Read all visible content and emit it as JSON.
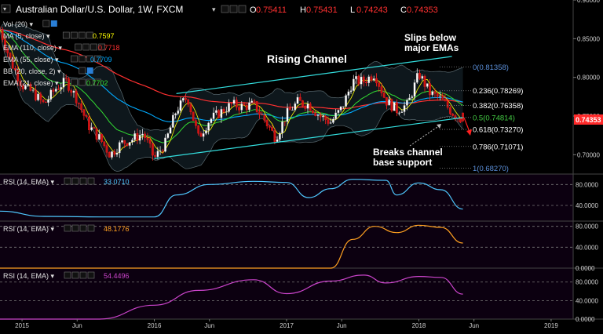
{
  "header": {
    "title": "Australian Dollar/U.S. Dollar, 1W, FXCM",
    "ohlc": [
      {
        "key": "O",
        "value": "0.75411"
      },
      {
        "key": "H",
        "value": "0.75431"
      },
      {
        "key": "L",
        "value": "0.74243"
      },
      {
        "key": "C",
        "value": "0.74353"
      }
    ]
  },
  "indicators": [
    {
      "label": "Vol (20)",
      "value": "",
      "color": "#ffffff"
    },
    {
      "label": "MA (5, close)",
      "value": "0.7597",
      "color": "#ffff00"
    },
    {
      "label": "EMA (110, close)",
      "value": "0.7718",
      "color": "#ff3030"
    },
    {
      "label": "EMA (55, close)",
      "value": "0.7709",
      "color": "#00aaff"
    },
    {
      "label": "BB (20, close, 2)",
      "value": "",
      "color": "#ffffff"
    },
    {
      "label": "EMA (21, close)",
      "value": "0.7702",
      "color": "#33dd33"
    }
  ],
  "price_tag": "0.74353",
  "annotations": {
    "channel": "Rising Channel",
    "slips_1": "Slips below",
    "slips_2": "major EMAs",
    "breaks_1": "Breaks channel",
    "breaks_2": "base support"
  },
  "fib_levels": [
    {
      "label": "0(0.81358)",
      "color": "#5b8fd9"
    },
    {
      "label": "0.236(0.78269)",
      "color": "#ffffff"
    },
    {
      "label": "0.382(0.76358)",
      "color": "#ffffff"
    },
    {
      "label": "0.5(0.74814)",
      "color": "#44cc44"
    },
    {
      "label": "0.618(0.73270)",
      "color": "#ffffff"
    },
    {
      "label": "0.786(0.71071)",
      "color": "#ffffff"
    },
    {
      "label": "1(0.68270)",
      "color": "#5b8fd9"
    }
  ],
  "price_axis": [
    "0.90000",
    "0.85000",
    "0.80000",
    "0.75000",
    "0.70000"
  ],
  "rsi_panels": [
    {
      "label": "RSI (14, EMA)",
      "value": "33.0710",
      "color": "#4fc8ff",
      "axis": [
        "80.0000",
        "40.0000"
      ]
    },
    {
      "label": "RSI (14, EMA)",
      "value": "48.1776",
      "color": "#ffa020",
      "axis": [
        "80.0000",
        "40.0000",
        "0.0000"
      ]
    },
    {
      "label": "RSI (14, EMA)",
      "value": "54.4496",
      "color": "#cc44cc",
      "axis": [
        "80.0000",
        "40.0000",
        "0.0000"
      ]
    }
  ],
  "time_axis": [
    "2015",
    "Jun",
    "2016",
    "Jun",
    "2017",
    "Jun",
    "2018",
    "Jun",
    "2019"
  ],
  "chart_data": {
    "type": "candlestick",
    "title": "Australian Dollar/U.S. Dollar, 1W, FXCM",
    "ylim": [
      0.675,
      0.9
    ],
    "price_ticks": [
      0.9,
      0.85,
      0.8,
      0.75,
      0.7
    ],
    "fib_values": [
      0.81358,
      0.78269,
      0.76358,
      0.74814,
      0.7327,
      0.71071,
      0.6827
    ],
    "last_close": 0.74353,
    "x_range": [
      "2014-11",
      "2019-02"
    ],
    "time_ticks": [
      "2015-01",
      "2015-06",
      "2016-01",
      "2016-06",
      "2017-01",
      "2017-06",
      "2018-01",
      "2018-06",
      "2019-01"
    ],
    "close_path": [
      {
        "t": "2014-11",
        "v": 0.862
      },
      {
        "t": "2014-12",
        "v": 0.82
      },
      {
        "t": "2015-01",
        "v": 0.79
      },
      {
        "t": "2015-02",
        "v": 0.78
      },
      {
        "t": "2015-03",
        "v": 0.765
      },
      {
        "t": "2015-04",
        "v": 0.785
      },
      {
        "t": "2015-05",
        "v": 0.795
      },
      {
        "t": "2015-06",
        "v": 0.772
      },
      {
        "t": "2015-07",
        "v": 0.738
      },
      {
        "t": "2015-08",
        "v": 0.722
      },
      {
        "t": "2015-09",
        "v": 0.7
      },
      {
        "t": "2015-10",
        "v": 0.715
      },
      {
        "t": "2015-11",
        "v": 0.72
      },
      {
        "t": "2015-12",
        "v": 0.728
      },
      {
        "t": "2016-01",
        "v": 0.695
      },
      {
        "t": "2016-02",
        "v": 0.715
      },
      {
        "t": "2016-03",
        "v": 0.758
      },
      {
        "t": "2016-04",
        "v": 0.775
      },
      {
        "t": "2016-05",
        "v": 0.722
      },
      {
        "t": "2016-06",
        "v": 0.745
      },
      {
        "t": "2016-07",
        "v": 0.755
      },
      {
        "t": "2016-08",
        "v": 0.765
      },
      {
        "t": "2016-09",
        "v": 0.762
      },
      {
        "t": "2016-10",
        "v": 0.765
      },
      {
        "t": "2016-11",
        "v": 0.745
      },
      {
        "t": "2016-12",
        "v": 0.722
      },
      {
        "t": "2017-01",
        "v": 0.752
      },
      {
        "t": "2017-02",
        "v": 0.768
      },
      {
        "t": "2017-03",
        "v": 0.765
      },
      {
        "t": "2017-04",
        "v": 0.75
      },
      {
        "t": "2017-05",
        "v": 0.742
      },
      {
        "t": "2017-06",
        "v": 0.76
      },
      {
        "t": "2017-07",
        "v": 0.795
      },
      {
        "t": "2017-08",
        "v": 0.795
      },
      {
        "t": "2017-09",
        "v": 0.805
      },
      {
        "t": "2017-10",
        "v": 0.77
      },
      {
        "t": "2017-11",
        "v": 0.758
      },
      {
        "t": "2017-12",
        "v": 0.765
      },
      {
        "t": "2018-01",
        "v": 0.805
      },
      {
        "t": "2018-02",
        "v": 0.78
      },
      {
        "t": "2018-03",
        "v": 0.772
      },
      {
        "t": "2018-04",
        "v": 0.755
      },
      {
        "t": "2018-05",
        "v": 0.744
      }
    ],
    "channel": {
      "upper": [
        {
          "t": "2016-03",
          "v": 0.779
        },
        {
          "t": "2018-04",
          "v": 0.827
        }
      ],
      "lower": [
        {
          "t": "2016-01",
          "v": 0.695
        },
        {
          "t": "2018-05",
          "v": 0.748
        }
      ]
    },
    "rsi_series": [
      {
        "name": "RSI (14, EMA)",
        "last": 33.071,
        "ylim": [
          10,
          100
        ],
        "path": [
          {
            "t": "2014-11",
            "v": 29
          },
          {
            "t": "2015-03",
            "v": 19
          },
          {
            "t": "2015-09",
            "v": 18
          },
          {
            "t": "2016-01",
            "v": 18
          },
          {
            "t": "2016-03",
            "v": 60
          },
          {
            "t": "2016-06",
            "v": 80
          },
          {
            "t": "2016-10",
            "v": 86
          },
          {
            "t": "2017-01",
            "v": 84
          },
          {
            "t": "2017-03",
            "v": 55
          },
          {
            "t": "2017-05",
            "v": 72
          },
          {
            "t": "2017-07",
            "v": 90
          },
          {
            "t": "2017-10",
            "v": 88
          },
          {
            "t": "2017-11",
            "v": 60
          },
          {
            "t": "2018-01",
            "v": 83
          },
          {
            "t": "2018-03",
            "v": 70
          },
          {
            "t": "2018-05",
            "v": 33
          }
        ]
      },
      {
        "name": "RSI (14, EMA)",
        "last": 48.1776,
        "ylim": [
          0,
          90
        ],
        "path": [
          {
            "t": "2014-11",
            "v": 0
          },
          {
            "t": "2017-05",
            "v": 0
          },
          {
            "t": "2017-07",
            "v": 55
          },
          {
            "t": "2017-09",
            "v": 80
          },
          {
            "t": "2017-11",
            "v": 68
          },
          {
            "t": "2018-01",
            "v": 82
          },
          {
            "t": "2018-03",
            "v": 78
          },
          {
            "t": "2018-05",
            "v": 48
          }
        ]
      },
      {
        "name": "RSI (14, EMA)",
        "last": 54.4496,
        "ylim": [
          0,
          110
        ],
        "path": [
          {
            "t": "2014-11",
            "v": 0
          },
          {
            "t": "2015-08",
            "v": 0
          },
          {
            "t": "2016-01",
            "v": 30
          },
          {
            "t": "2016-05",
            "v": 62
          },
          {
            "t": "2016-10",
            "v": 85
          },
          {
            "t": "2017-01",
            "v": 55
          },
          {
            "t": "2017-05",
            "v": 82
          },
          {
            "t": "2017-08",
            "v": 95
          },
          {
            "t": "2017-10",
            "v": 78
          },
          {
            "t": "2018-01",
            "v": 92
          },
          {
            "t": "2018-03",
            "v": 90
          },
          {
            "t": "2018-05",
            "v": 54
          }
        ]
      }
    ]
  }
}
